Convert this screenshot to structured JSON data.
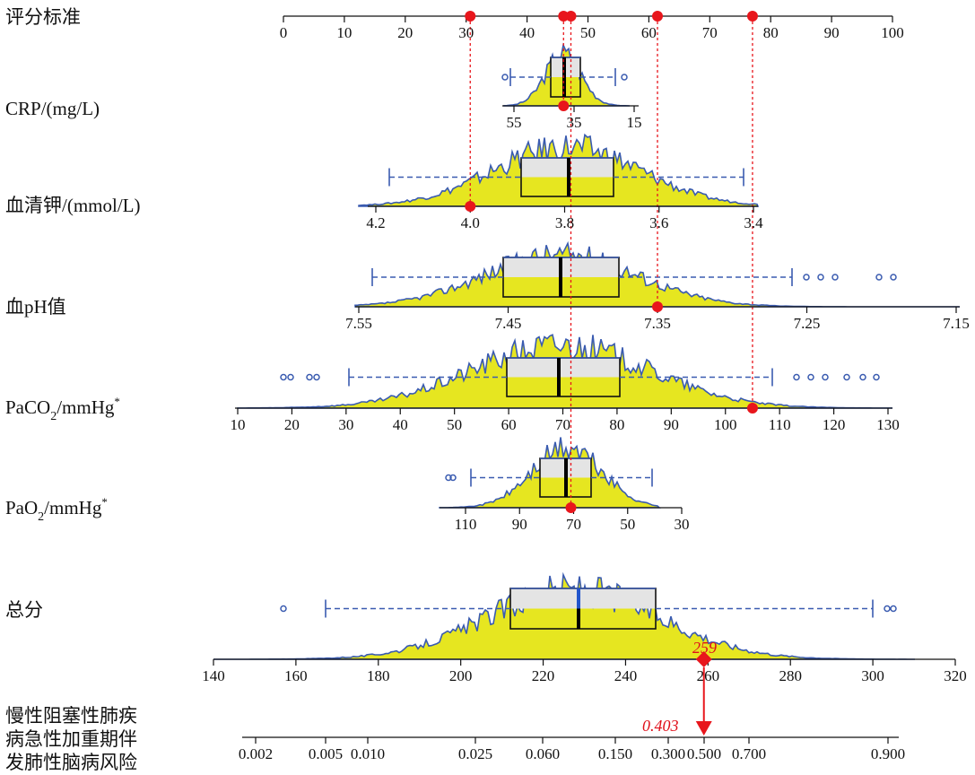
{
  "chart_data": {
    "type": "nomogram",
    "variables": [
      {
        "key": "points",
        "label": "评分标准",
        "ticks": [
          "0",
          "10",
          "20",
          "30",
          "40",
          "50",
          "60",
          "70",
          "80",
          "90",
          "100"
        ],
        "values": [
          0,
          10,
          20,
          30,
          40,
          50,
          60,
          70,
          80,
          90,
          100
        ]
      },
      {
        "key": "crp",
        "label": "CRP/(mg/L)",
        "ticks": [
          "55",
          "35",
          "15"
        ],
        "values": [
          55,
          35,
          15
        ],
        "patient_value": 38.5
      },
      {
        "key": "k",
        "label": "血清钾/(mmol/L)",
        "ticks": [
          "4.2",
          "4.0",
          "3.8",
          "3.6",
          "3.4"
        ],
        "values": [
          4.2,
          4.0,
          3.8,
          3.6,
          3.4
        ],
        "patient_value": 4.0
      },
      {
        "key": "ph",
        "label": "血pH值",
        "ticks": [
          "7.55",
          "7.45",
          "7.35",
          "7.25",
          "7.15"
        ],
        "values": [
          7.55,
          7.45,
          7.35,
          7.25,
          7.15
        ],
        "patient_value": 7.35
      },
      {
        "key": "paco2",
        "label_main": "PaCO",
        "label_sub": "2",
        "label_rest": "/mmHg",
        "label_sup": "*",
        "ticks": [
          "10",
          "20",
          "30",
          "40",
          "50",
          "60",
          "70",
          "80",
          "90",
          "100",
          "110",
          "120",
          "130"
        ],
        "values": [
          10,
          20,
          30,
          40,
          50,
          60,
          70,
          80,
          90,
          100,
          110,
          120,
          130
        ],
        "patient_value": 105
      },
      {
        "key": "pao2",
        "label_main": "PaO",
        "label_sub": "2",
        "label_rest": "/mmHg",
        "label_sup": "*",
        "ticks": [
          "110",
          "90",
          "70",
          "50",
          "30"
        ],
        "values": [
          110,
          90,
          70,
          50,
          30
        ],
        "patient_value": 71
      },
      {
        "key": "total",
        "label": "总分",
        "ticks": [
          "140",
          "160",
          "180",
          "200",
          "220",
          "240",
          "260",
          "280",
          "300",
          "320"
        ],
        "values": [
          140,
          160,
          180,
          200,
          220,
          240,
          260,
          280,
          300,
          320
        ],
        "patient_value": 259
      },
      {
        "key": "risk",
        "label_lines": [
          "慢性阻塞性肺疾",
          "病急性加重期伴",
          "发肺性脑病风险"
        ],
        "ticks": [
          "0.002",
          "0.005",
          "0.010",
          "0.025",
          "0.060",
          "0.150",
          "0.300",
          "0.500",
          "0.700",
          "0.900"
        ],
        "values": [
          0.002,
          0.005,
          0.01,
          0.025,
          0.06,
          0.15,
          0.3,
          0.5,
          0.7,
          0.9
        ],
        "patient_value": 0.403
      }
    ],
    "annotations": {
      "total_score": "259",
      "risk": "0.403"
    },
    "colors": {
      "density_fill": "#e6e620",
      "density_line": "#3a5bb0",
      "box_fill": "#e4e4e4",
      "median": "#000000",
      "marker": "#e8161c",
      "total_median": "#2255cc"
    }
  }
}
